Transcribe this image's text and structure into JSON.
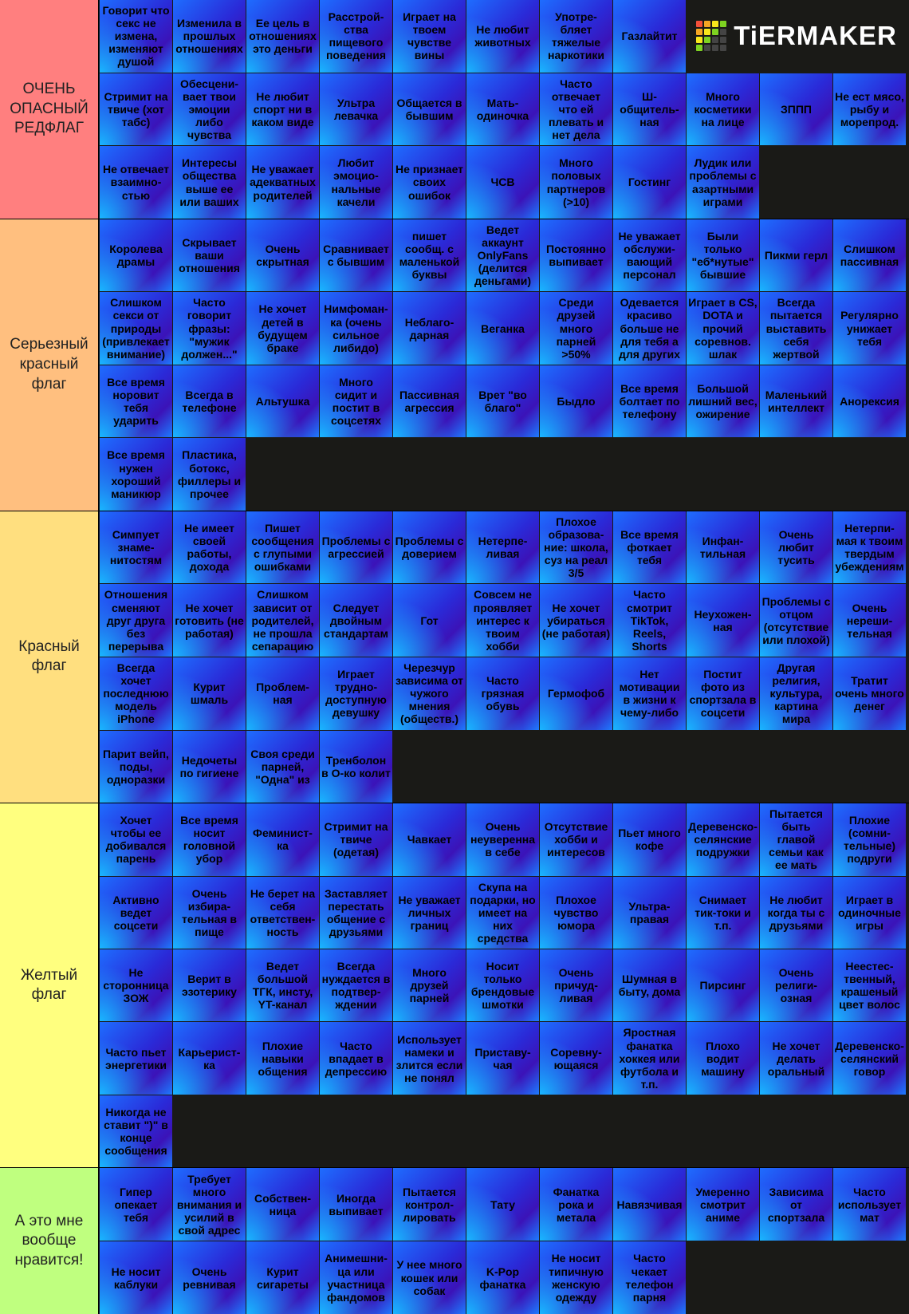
{
  "logo": "TiERMAKER",
  "tiers": [
    {
      "label": "ОЧЕНЬ ОПАСНЫЙ РЕДФЛАГ",
      "color": "#ff7f7f",
      "items": [
        "Говорит что секс не измена, изменяют душой",
        "Изменила в прошлых отношениях",
        "Ее цель в отношениях это деньги",
        "Расстрой-ства пищевого поведения",
        "Играет на твоем чувстве вины",
        "Не любит животных",
        "Употре-бляет тяжелые наркотики",
        "Газлайтит",
        "Стримит на твиче (хот табс)",
        "Обесцени-вает твои эмоции либо чувства",
        "Не любит спорт ни в каком виде",
        "Ультра левачка",
        "Общается в бывшим",
        "Мать-одиночка",
        "Часто отвечает что ей плевать и нет дела",
        "Ш-общитель-ная",
        "Много косметики на лице",
        "ЗППП",
        "Не ест мясо, рыбу и морепрод.",
        "Не отвечает взаимно-стью",
        "Интересы общества выше ее или ваших",
        "Не уважает адекватных родителей",
        "Любит эмоцио-нальные качели",
        "Не признает своих ошибок",
        "ЧСВ",
        "Много половых партнеров (>10)",
        "Гостинг",
        "Лудик или проблемы с азартными играми"
      ]
    },
    {
      "label": "Серьезный красный флаг",
      "color": "#ffbf7f",
      "items": [
        "Королева драмы",
        "Скрывает ваши отношения",
        "Очень скрытная",
        "Сравнивает с бывшим",
        "пишет сообщ. с маленькой буквы",
        "Ведет аккаунт OnlyFans (делится деньгами)",
        "Постоянно выпивает",
        "Не уважает обслужи-вающий персонал",
        "Были только \"еб*нутые\" бывшие",
        "Пикми герл",
        "Слишком пассивная",
        "Слишком секси от природы (привлекает внимание)",
        "Часто говорит фразы: \"мужик должен...\"",
        "Не хочет детей в будущем браке",
        "Нимфоман-ка (очень сильное либидо)",
        "Неблаго-дарная",
        "Веганка",
        "Среди друзей много парней >50%",
        "Одевается красиво больше не для тебя а для других",
        "Играет в CS, DOTA и прочий соревнов. шлак",
        "Всегда пытается выставить себя жертвой",
        "Регулярно унижает тебя",
        "Все время норовит тебя ударить",
        "Всегда в телефоне",
        "Альтушка",
        "Много сидит и постит в соцсетях",
        "Пассивная агрессия",
        "Врет \"во благо\"",
        "Быдло",
        "Все время болтает по телефону",
        "Большой лишний вес, ожирение",
        "Маленький интеллект",
        "Анорексия",
        "Все время нужен хороший маникюр",
        "Пластика, ботокс, филлеры и прочее"
      ]
    },
    {
      "label": "Красный флаг",
      "color": "#ffdf7f",
      "items": [
        "Симпует знаме-нитостям",
        "Не имеет своей работы, дохода",
        "Пишет сообщения с глупыми ошибками",
        "Проблемы с агрессией",
        "Проблемы с доверием",
        "Нетерпе-ливая",
        "Плохое образова-ние: школа, суз на реал 3/5",
        "Все время фоткает тебя",
        "Инфан-тильная",
        "Очень любит тусить",
        "Нетерпи-мая к твоим твердым убеждениям",
        "Отношения сменяют друг друга без перерыва",
        "Не хочет готовить (не работая)",
        "Слишком зависит от родителей, не прошла сепарацию",
        "Следует двойным стандартам",
        "Гот",
        "Совсем не проявляет интерес к твоим хобби",
        "Не хочет убираться (не работая)",
        "Часто смотрит TikTok, Reels, Shorts",
        "Неухожен-ная",
        "Проблемы с отцом (отсутствие или плохой)",
        "Очень нереши-тельная",
        "Всегда хочет последнюю модель iPhone",
        "Курит шмаль",
        "Проблем-ная",
        "Играет трудно-доступную девушку",
        "Черезчур зависима от чужого мнения (обществ.)",
        "Часто грязная обувь",
        "Гермофоб",
        "Нет мотивации в жизни к чему-либо",
        "Постит фото из спортзала в соцсети",
        "Другая религия, культура, картина мира",
        "Тратит очень много денег",
        "Парит вейп, поды, одноразки",
        "Недочеты по гигиене",
        "Своя среди парней, \"Одна\" из",
        "Тренболон в О-ко колит"
      ]
    },
    {
      "label": "Желтый флаг",
      "color": "#ffff7f",
      "items": [
        "Хочет чтобы ее добивался парень",
        "Все время носит головной убор",
        "Феминист-ка",
        "Стримит на твиче (одетая)",
        "Чавкает",
        "Очень неуверенна в себе",
        "Отсутствие хобби и интересов",
        "Пьет много кофе",
        "Деревенско-селянские подружки",
        "Пытается быть главой семьи как ее мать",
        "Плохие (сомни-тельные) подруги",
        "Активно ведет соцсети",
        "Очень избира-тельная в пище",
        "Не берет на себя ответствен-ность",
        "Заставляет перестать общение с друзьями",
        "Не уважает личных границ",
        "Скупа на подарки, но имеет на них средства",
        "Плохое чувство юмора",
        "Ультра-правая",
        "Снимает тик-токи и т.п.",
        "Не любит когда ты с друзьями",
        "Играет в одиночные игры",
        "Не сторонница ЗОЖ",
        "Верит в эзотерику",
        "Ведет большой ТГК, инсту, YT-канал",
        "Всегда нуждается в подтвер-ждении",
        "Много друзей парней",
        "Носит только брендовые шмотки",
        "Очень причуд-ливая",
        "Шумная в быту, дома",
        "Пирсинг",
        "Очень религи-озная",
        "Неестес-твенный, крашеный цвет волос",
        "Часто пьет энергетики",
        "Карьерист-ка",
        "Плохие навыки общения",
        "Часто впадает в депрессию",
        "Использует намеки и злится если не понял",
        "Приставу-чая",
        "Соревну-ющаяся",
        "Яростная фанатка хоккея или футбола и т.п.",
        "Плохо водит машину",
        "Не хочет делать оральный",
        "Деревенско-селянский говор",
        "Никогда не ставит \")\" в конце сообщения"
      ]
    },
    {
      "label": "А это мне вообще нравится!",
      "color": "#bfff7f",
      "items": [
        "Гипер опекает тебя",
        "Требует много внимания и усилий в свой адрес",
        "Собствен-ница",
        "Иногда выпивает",
        "Пытается контрол-лировать",
        "Тату",
        "Фанатка рока и метала",
        "Навязчивая",
        "Умеренно смотрит аниме",
        "Зависима от спортзала",
        "Часто использует мат",
        "Не носит каблуки",
        "Очень ревнивая",
        "Курит сигареты",
        "Анимешни-ца или участница фандомов",
        "У нее много кошек или собак",
        "K-Pop фанатка",
        "Не носит типичную женскую одежду",
        "Часто чекает телефон парня"
      ]
    }
  ]
}
